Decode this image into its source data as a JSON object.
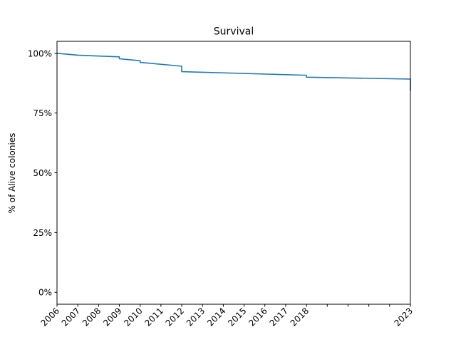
{
  "chart_data": {
    "type": "line",
    "title": "Survival",
    "xlabel": "",
    "ylabel": "% of Alive colonies",
    "ylim": [
      -0.05,
      1.05
    ],
    "xlim": [
      "2006-01-01",
      "2023-01-01"
    ],
    "grid": false,
    "x_ticks": [
      {
        "date": "2006-01-01",
        "label": "2006"
      },
      {
        "date": "2007-01-01",
        "label": "2007"
      },
      {
        "date": "2008-01-01",
        "label": "2008"
      },
      {
        "date": "2009-01-01",
        "label": "2009"
      },
      {
        "date": "2010-01-01",
        "label": "2010"
      },
      {
        "date": "2011-01-01",
        "label": "2011"
      },
      {
        "date": "2012-01-01",
        "label": "2012"
      },
      {
        "date": "2013-01-01",
        "label": "2013"
      },
      {
        "date": "2014-01-01",
        "label": "2014"
      },
      {
        "date": "2015-01-01",
        "label": "2015"
      },
      {
        "date": "2016-01-01",
        "label": "2016"
      },
      {
        "date": "2017-01-01",
        "label": "2017"
      },
      {
        "date": "2018-01-01",
        "label": "2018"
      },
      {
        "date": "2019-01-01",
        "label": ""
      },
      {
        "date": "2020-01-01",
        "label": ""
      },
      {
        "date": "2021-01-01",
        "label": ""
      },
      {
        "date": "2022-01-01",
        "label": ""
      },
      {
        "date": "2023-01-01",
        "label": "2023"
      }
    ],
    "y_ticks": [
      {
        "value": 0,
        "label": "0%"
      },
      {
        "value": 0.25,
        "label": "25%"
      },
      {
        "value": 0.5,
        "label": "50%"
      },
      {
        "value": 0.75,
        "label": "75%"
      },
      {
        "value": 1.0,
        "label": "100%"
      }
    ],
    "series": [
      {
        "color": "#1f77b4",
        "points": [
          [
            "2006-01-01",
            1.0
          ],
          [
            "2007-01-01",
            0.992
          ],
          [
            "2009-01-01",
            0.985
          ],
          [
            "2009-01-01",
            0.977
          ],
          [
            "2010-01-01",
            0.969
          ],
          [
            "2010-01-01",
            0.962
          ],
          [
            "2012-01-01",
            0.946
          ],
          [
            "2012-01-01",
            0.923
          ],
          [
            "2018-01-01",
            0.908
          ],
          [
            "2018-01-01",
            0.9
          ],
          [
            "2023-01-01",
            0.892
          ],
          [
            "2023-01-01",
            0.842
          ]
        ]
      }
    ]
  }
}
